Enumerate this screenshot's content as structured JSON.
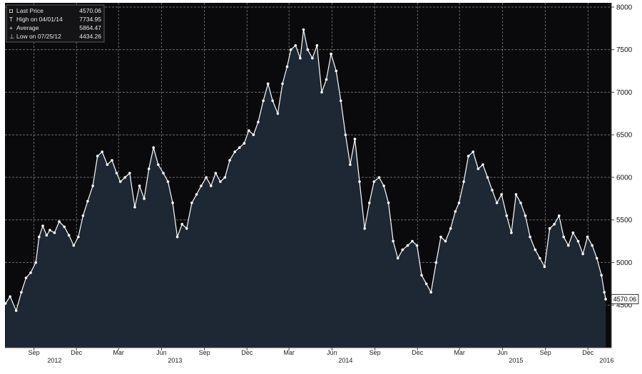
{
  "chart_data": {
    "type": "line",
    "legend": {
      "placement": "top-left",
      "entries": [
        {
          "label": "Last Price",
          "value": "4570.06"
        },
        {
          "label": "High on 04/01/14",
          "value": "7734.95"
        },
        {
          "label": "Average",
          "value": "5864.47"
        },
        {
          "label": "Low on 07/25/12",
          "value": "4434.26"
        }
      ]
    },
    "last_price_tag": "4570.06",
    "ylim": [
      4000,
      8050
    ],
    "yticks": [
      "4500",
      "5000",
      "5500",
      "6000",
      "6500",
      "7000",
      "7500",
      "8000"
    ],
    "xlim": [
      "2012-07-01",
      "2016-01-20"
    ],
    "xticks": [
      {
        "date": "2012-09-01",
        "label": "Sep"
      },
      {
        "date": "2012-12-01",
        "label": "Dec"
      },
      {
        "date": "2013-03-01",
        "label": "Mar"
      },
      {
        "date": "2013-06-01",
        "label": "Jun"
      },
      {
        "date": "2013-09-01",
        "label": "Sep"
      },
      {
        "date": "2013-12-01",
        "label": "Dec"
      },
      {
        "date": "2014-03-01",
        "label": "Mar"
      },
      {
        "date": "2014-06-01",
        "label": "Jun"
      },
      {
        "date": "2014-09-01",
        "label": "Sep"
      },
      {
        "date": "2014-12-01",
        "label": "Dec"
      },
      {
        "date": "2015-03-01",
        "label": "Mar"
      },
      {
        "date": "2015-06-01",
        "label": "Jun"
      },
      {
        "date": "2015-09-01",
        "label": "Sep"
      },
      {
        "date": "2015-12-01",
        "label": "Dec"
      }
    ],
    "years": [
      {
        "label": "2012",
        "date": "2012-10-15"
      },
      {
        "label": "2013",
        "date": "2013-06-30"
      },
      {
        "label": "2014",
        "date": "2014-06-30"
      },
      {
        "label": "2015",
        "date": "2015-06-30"
      },
      {
        "label": "2016",
        "date": "2016-01-10"
      }
    ],
    "grid": true,
    "colors": {
      "background": "#0a0a0c",
      "area_fill": "#1e2734",
      "line": "#ffffff",
      "grid": "#8a8a8a"
    },
    "series": [
      {
        "points": [
          [
            "2012-07-02",
            4520
          ],
          [
            "2012-07-12",
            4600
          ],
          [
            "2012-07-25",
            4434
          ],
          [
            "2012-08-05",
            4650
          ],
          [
            "2012-08-15",
            4820
          ],
          [
            "2012-08-25",
            4880
          ],
          [
            "2012-09-05",
            5000
          ],
          [
            "2012-09-12",
            5300
          ],
          [
            "2012-09-20",
            5430
          ],
          [
            "2012-09-28",
            5320
          ],
          [
            "2012-10-05",
            5380
          ],
          [
            "2012-10-15",
            5350
          ],
          [
            "2012-10-25",
            5480
          ],
          [
            "2012-11-05",
            5420
          ],
          [
            "2012-11-15",
            5320
          ],
          [
            "2012-11-25",
            5200
          ],
          [
            "2012-12-05",
            5300
          ],
          [
            "2012-12-15",
            5550
          ],
          [
            "2012-12-25",
            5720
          ],
          [
            "2013-01-05",
            5900
          ],
          [
            "2013-01-15",
            6250
          ],
          [
            "2013-01-25",
            6300
          ],
          [
            "2013-02-05",
            6150
          ],
          [
            "2013-02-15",
            6200
          ],
          [
            "2013-02-25",
            6050
          ],
          [
            "2013-03-05",
            5950
          ],
          [
            "2013-03-15",
            6000
          ],
          [
            "2013-03-25",
            6050
          ],
          [
            "2013-04-05",
            5650
          ],
          [
            "2013-04-15",
            5900
          ],
          [
            "2013-04-25",
            5750
          ],
          [
            "2013-05-05",
            6100
          ],
          [
            "2013-05-15",
            6350
          ],
          [
            "2013-05-25",
            6150
          ],
          [
            "2013-06-05",
            6050
          ],
          [
            "2013-06-15",
            5950
          ],
          [
            "2013-06-25",
            5700
          ],
          [
            "2013-07-05",
            5300
          ],
          [
            "2013-07-15",
            5450
          ],
          [
            "2013-07-25",
            5400
          ],
          [
            "2013-08-05",
            5700
          ],
          [
            "2013-08-15",
            5800
          ],
          [
            "2013-08-25",
            5900
          ],
          [
            "2013-09-05",
            6000
          ],
          [
            "2013-09-15",
            5900
          ],
          [
            "2013-09-25",
            6050
          ],
          [
            "2013-10-05",
            5950
          ],
          [
            "2013-10-15",
            6000
          ],
          [
            "2013-10-25",
            6200
          ],
          [
            "2013-11-05",
            6300
          ],
          [
            "2013-11-15",
            6350
          ],
          [
            "2013-11-25",
            6400
          ],
          [
            "2013-12-05",
            6550
          ],
          [
            "2013-12-15",
            6500
          ],
          [
            "2013-12-25",
            6650
          ],
          [
            "2014-01-05",
            6900
          ],
          [
            "2014-01-15",
            7100
          ],
          [
            "2014-01-25",
            6900
          ],
          [
            "2014-02-05",
            6750
          ],
          [
            "2014-02-15",
            7100
          ],
          [
            "2014-02-25",
            7300
          ],
          [
            "2014-03-05",
            7500
          ],
          [
            "2014-03-15",
            7550
          ],
          [
            "2014-03-25",
            7400
          ],
          [
            "2014-04-01",
            7735
          ],
          [
            "2014-04-10",
            7500
          ],
          [
            "2014-04-20",
            7400
          ],
          [
            "2014-04-30",
            7550
          ],
          [
            "2014-05-10",
            7000
          ],
          [
            "2014-05-20",
            7150
          ],
          [
            "2014-05-30",
            7450
          ],
          [
            "2014-06-10",
            7250
          ],
          [
            "2014-06-20",
            6900
          ],
          [
            "2014-06-30",
            6500
          ],
          [
            "2014-07-10",
            6150
          ],
          [
            "2014-07-20",
            6450
          ],
          [
            "2014-07-30",
            5950
          ],
          [
            "2014-08-10",
            5400
          ],
          [
            "2014-08-20",
            5700
          ],
          [
            "2014-08-30",
            5950
          ],
          [
            "2014-09-10",
            6000
          ],
          [
            "2014-09-20",
            5900
          ],
          [
            "2014-09-30",
            5700
          ],
          [
            "2014-10-10",
            5250
          ],
          [
            "2014-10-20",
            5050
          ],
          [
            "2014-10-30",
            5150
          ],
          [
            "2014-11-10",
            5200
          ],
          [
            "2014-11-20",
            5250
          ],
          [
            "2014-11-30",
            5200
          ],
          [
            "2014-12-10",
            4850
          ],
          [
            "2014-12-20",
            4750
          ],
          [
            "2014-12-30",
            4650
          ],
          [
            "2015-01-10",
            5000
          ],
          [
            "2015-01-20",
            5300
          ],
          [
            "2015-01-30",
            5250
          ],
          [
            "2015-02-10",
            5400
          ],
          [
            "2015-02-20",
            5600
          ],
          [
            "2015-02-28",
            5700
          ],
          [
            "2015-03-10",
            5950
          ],
          [
            "2015-03-20",
            6250
          ],
          [
            "2015-03-30",
            6300
          ],
          [
            "2015-04-10",
            6100
          ],
          [
            "2015-04-20",
            6150
          ],
          [
            "2015-04-30",
            6000
          ],
          [
            "2015-05-10",
            5850
          ],
          [
            "2015-05-20",
            5700
          ],
          [
            "2015-05-30",
            5800
          ],
          [
            "2015-06-10",
            5550
          ],
          [
            "2015-06-20",
            5350
          ],
          [
            "2015-06-30",
            5800
          ],
          [
            "2015-07-10",
            5700
          ],
          [
            "2015-07-20",
            5550
          ],
          [
            "2015-07-30",
            5300
          ],
          [
            "2015-08-10",
            5150
          ],
          [
            "2015-08-20",
            5050
          ],
          [
            "2015-08-30",
            4950
          ],
          [
            "2015-09-10",
            5400
          ],
          [
            "2015-09-20",
            5450
          ],
          [
            "2015-09-30",
            5550
          ],
          [
            "2015-10-10",
            5300
          ],
          [
            "2015-10-20",
            5200
          ],
          [
            "2015-10-30",
            5350
          ],
          [
            "2015-11-10",
            5250
          ],
          [
            "2015-11-20",
            5100
          ],
          [
            "2015-11-30",
            5300
          ],
          [
            "2015-12-10",
            5200
          ],
          [
            "2015-12-20",
            5050
          ],
          [
            "2015-12-30",
            4850
          ],
          [
            "2016-01-05",
            4650
          ],
          [
            "2016-01-08",
            4570
          ]
        ]
      }
    ]
  }
}
